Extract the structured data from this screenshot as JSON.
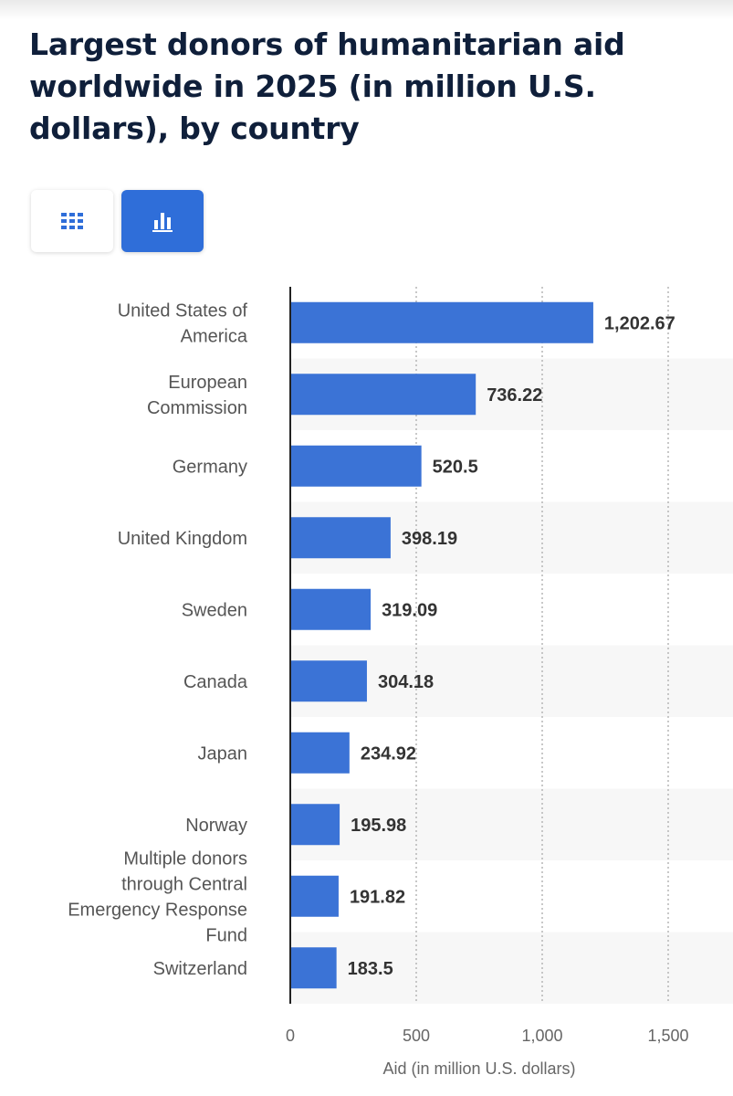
{
  "title": "Largest donors of humanitarian aid worldwide in 2025 (in million U.S. dollars), by country",
  "view_toggle": {
    "table_icon": "table-grid-icon",
    "chart_icon": "bar-chart-icon",
    "active": "chart"
  },
  "colors": {
    "bar": "#3b73d6",
    "accent": "#2f6ed9",
    "title": "#0f1f3a"
  },
  "chart_data": {
    "type": "bar",
    "orientation": "horizontal",
    "categories": [
      "United States of America",
      "European Commission",
      "Germany",
      "United Kingdom",
      "Sweden",
      "Canada",
      "Japan",
      "Norway",
      "Multiple donors through Central Emergency Response Fund",
      "Switzerland"
    ],
    "category_lines": [
      [
        "United States of",
        "America"
      ],
      [
        "European",
        "Commission"
      ],
      [
        "Germany"
      ],
      [
        "United Kingdom"
      ],
      [
        "Sweden"
      ],
      [
        "Canada"
      ],
      [
        "Japan"
      ],
      [
        "Norway"
      ],
      [
        "Multiple donors",
        "through Central",
        "Emergency Response",
        "Fund"
      ],
      [
        "Switzerland"
      ]
    ],
    "values": [
      1202.67,
      736.22,
      520.5,
      398.19,
      319.09,
      304.18,
      234.92,
      195.98,
      191.82,
      183.5
    ],
    "value_labels": [
      "1,202.67",
      "736.22",
      "520.5",
      "398.19",
      "319.09",
      "304.18",
      "234.92",
      "195.98",
      "191.82",
      "183.5"
    ],
    "xlabel": "Aid (in million U.S. dollars)",
    "ylabel": "",
    "xlim": [
      0,
      1500
    ],
    "ticks": [
      0,
      500,
      1000,
      1500
    ],
    "tick_labels": [
      "0",
      "500",
      "1,000",
      "1,500"
    ],
    "grid": true,
    "legend": "none"
  }
}
